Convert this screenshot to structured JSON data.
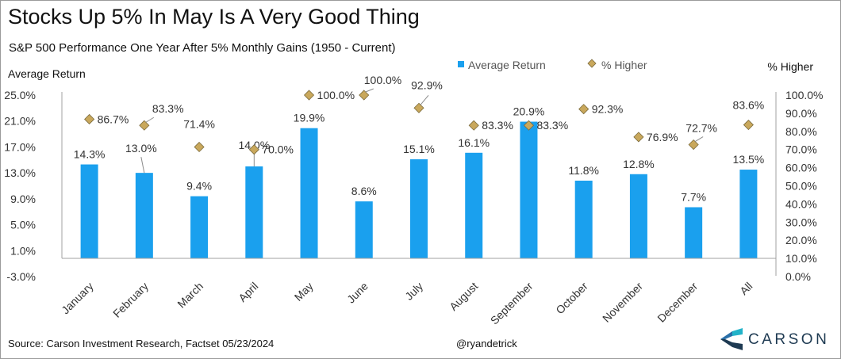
{
  "title": "Stocks Up 5% In May Is A Very Good Thing",
  "subtitle": "S&P 500 Performance One Year After 5% Monthly Gains (1950 - Current)",
  "source": "Source: Carson Investment Research, Factset 05/23/2024",
  "handle": "@ryandetrick",
  "logo": {
    "text": "CARSON"
  },
  "chart_data": {
    "type": "bar",
    "categories": [
      "January",
      "February",
      "March",
      "April",
      "May",
      "June",
      "July",
      "August",
      "September",
      "October",
      "November",
      "December",
      "All"
    ],
    "series": [
      {
        "name": "Average Return",
        "type": "bar",
        "axis": "left",
        "values": [
          14.3,
          13.0,
          9.4,
          14.0,
          19.9,
          8.6,
          15.1,
          16.1,
          20.9,
          11.8,
          12.8,
          7.7,
          13.5
        ],
        "labels": [
          "14.3%",
          "13.0%",
          "9.4%",
          "14.0%",
          "19.9%",
          "8.6%",
          "15.1%",
          "16.1%",
          "20.9%",
          "11.8%",
          "12.8%",
          "7.7%",
          "13.5%"
        ]
      },
      {
        "name": "% Higher",
        "type": "scatter",
        "axis": "right",
        "values": [
          86.7,
          83.3,
          71.4,
          70.0,
          100.0,
          100.0,
          92.9,
          83.3,
          83.3,
          92.3,
          76.9,
          72.7,
          83.6
        ],
        "labels": [
          "86.7%",
          "83.3%",
          "71.4%",
          "70.0%",
          "100.0%",
          "100.0%",
          "92.9%",
          "83.3%",
          "83.3%",
          "92.3%",
          "76.9%",
          "72.7%",
          "83.6%"
        ]
      }
    ],
    "ylabel": "Average Return",
    "ylabel_right": "% Higher",
    "ylim": [
      -3.0,
      25.0
    ],
    "yticks": [
      -3.0,
      1.0,
      5.0,
      9.0,
      13.0,
      17.0,
      21.0,
      25.0
    ],
    "ytick_labels": [
      "-3.0%",
      "1.0%",
      "5.0%",
      "9.0%",
      "13.0%",
      "17.0%",
      "21.0%",
      "25.0%"
    ],
    "ylim_right": [
      0.0,
      100.0
    ],
    "yticks_right": [
      0,
      10,
      20,
      30,
      40,
      50,
      60,
      70,
      80,
      90,
      100
    ],
    "ytick_labels_right": [
      "0.0%",
      "10.0%",
      "20.0%",
      "30.0%",
      "40.0%",
      "50.0%",
      "60.0%",
      "70.0%",
      "80.0%",
      "90.0%",
      "100.0%"
    ],
    "grid": false,
    "legend": "top-center",
    "colors": {
      "bar": "#1aa0ee",
      "marker": "#c9a85c",
      "marker_edge": "#7a6a3c",
      "axis": "#a0a0a0",
      "leader": "#8c8c8c"
    }
  }
}
